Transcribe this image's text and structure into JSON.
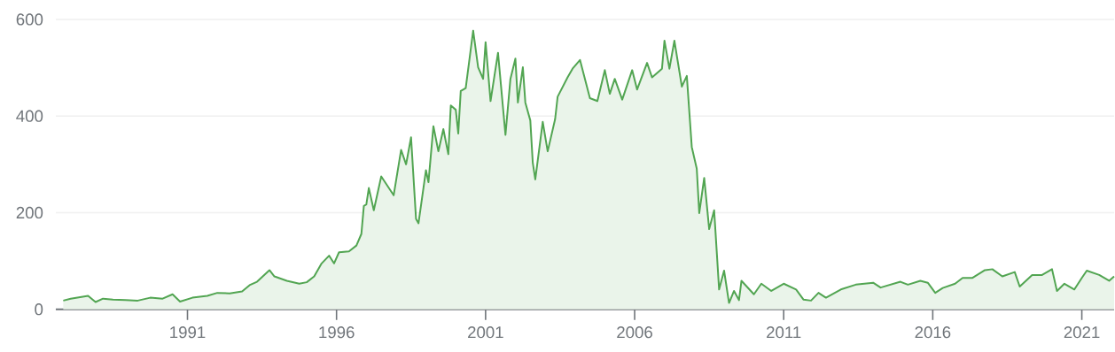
{
  "chart_data": {
    "type": "area",
    "color": "#52a552",
    "x": [
      "1986-11",
      "1987-02",
      "1987-09",
      "1987-12",
      "1988-03",
      "1988-07",
      "1988-12",
      "1989-05",
      "1989-10",
      "1990-03",
      "1990-07",
      "1990-10",
      "1991-03",
      "1991-09",
      "1992-01",
      "1992-06",
      "1992-11",
      "1993-02",
      "1993-05",
      "1993-10",
      "1993-12",
      "1994-05",
      "1994-10",
      "1995-01",
      "1995-04",
      "1995-07",
      "1995-10",
      "1995-12",
      "1996-02",
      "1996-06",
      "1996-09",
      "1996-11",
      "1996-12",
      "1997-01",
      "1997-02",
      "1997-04",
      "1997-07",
      "1997-12",
      "1998-03",
      "1998-05",
      "1998-07",
      "1998-09",
      "1998-10",
      "1999-01",
      "1999-02",
      "1999-04",
      "1999-06",
      "1999-08",
      "1999-10",
      "1999-11",
      "2000-01",
      "2000-02",
      "2000-03",
      "2000-05",
      "2000-07",
      "2000-08",
      "2000-10",
      "2000-12",
      "2001-01",
      "2001-03",
      "2001-06",
      "2001-09",
      "2001-11",
      "2002-01",
      "2002-02",
      "2002-04",
      "2002-05",
      "2002-07",
      "2002-08",
      "2002-09",
      "2002-12",
      "2003-02",
      "2003-05",
      "2003-06",
      "2003-10",
      "2003-12",
      "2004-03",
      "2004-07",
      "2004-10",
      "2005-01",
      "2005-03",
      "2005-05",
      "2005-08",
      "2005-12",
      "2006-02",
      "2006-06",
      "2006-08",
      "2006-12",
      "2007-01",
      "2007-03",
      "2007-05",
      "2007-08",
      "2007-10",
      "2007-12",
      "2008-02",
      "2008-03",
      "2008-05",
      "2008-07",
      "2008-09",
      "2008-11",
      "2009-01",
      "2009-03",
      "2009-05",
      "2009-07",
      "2009-08",
      "2010-01",
      "2010-04",
      "2010-08",
      "2011-01",
      "2011-06",
      "2011-09",
      "2011-12",
      "2012-03",
      "2012-06",
      "2012-12",
      "2013-06",
      "2014-01",
      "2014-04",
      "2014-12",
      "2015-03",
      "2015-08",
      "2015-11",
      "2016-02",
      "2016-05",
      "2016-10",
      "2017-01",
      "2017-05",
      "2017-10",
      "2018-01",
      "2018-05",
      "2018-10",
      "2018-12",
      "2019-05",
      "2019-09",
      "2020-01",
      "2020-03",
      "2020-06",
      "2020-10",
      "2021-01",
      "2021-03",
      "2021-08",
      "2021-12",
      "2022-02"
    ],
    "values": [
      18,
      22,
      28,
      15,
      22,
      20,
      19,
      18,
      24,
      22,
      31,
      16,
      24,
      28,
      34,
      33,
      37,
      50,
      57,
      81,
      68,
      59,
      53,
      56,
      68,
      95,
      111,
      95,
      118,
      120,
      132,
      156,
      214,
      217,
      251,
      205,
      275,
      236,
      330,
      300,
      356,
      187,
      178,
      288,
      263,
      379,
      327,
      373,
      321,
      422,
      413,
      364,
      452,
      458,
      537,
      577,
      501,
      477,
      553,
      431,
      531,
      361,
      477,
      519,
      428,
      501,
      428,
      391,
      303,
      269,
      388,
      327,
      394,
      440,
      480,
      498,
      516,
      437,
      431,
      495,
      446,
      477,
      434,
      495,
      455,
      510,
      480,
      498,
      556,
      498,
      556,
      461,
      483,
      336,
      291,
      199,
      272,
      166,
      205,
      41,
      80,
      13,
      38,
      19,
      59,
      31,
      53,
      38,
      53,
      41,
      20,
      18,
      34,
      24,
      41,
      51,
      55,
      45,
      57,
      51,
      59,
      55,
      34,
      44,
      53,
      65,
      65,
      81,
      83,
      68,
      77,
      47,
      71,
      71,
      83,
      38,
      53,
      41,
      65,
      80,
      71,
      59,
      68
    ],
    "xlim": [
      "1986-08",
      "2022-02"
    ],
    "ylim": [
      0,
      600
    ],
    "xticks": [
      "1991",
      "1996",
      "2001",
      "2006",
      "2011",
      "2016",
      "2021"
    ],
    "yticks": [
      0,
      200,
      400,
      600
    ],
    "grid": "y"
  }
}
